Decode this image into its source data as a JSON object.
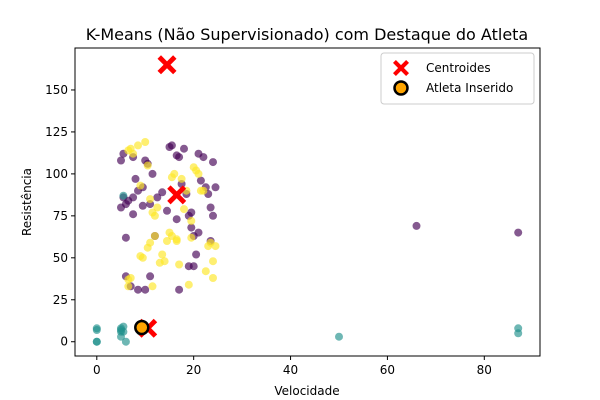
{
  "chart_data": {
    "type": "scatter",
    "title": "K-Means (Não Supervisionado) com Destaque do Atleta",
    "xlabel": "Velocidade",
    "ylabel": "Resistência",
    "xlim": [
      -4.5,
      91.5
    ],
    "ylim": [
      -8.5,
      175
    ],
    "xticks": [
      0,
      20,
      40,
      60,
      80
    ],
    "yticks": [
      0,
      25,
      50,
      75,
      100,
      125,
      150
    ],
    "grid": false,
    "legend_position": "top-right",
    "colors": {
      "cluster_0": "#440154",
      "cluster_1": "#21918c",
      "cluster_2": "#fde725",
      "centroid": "#ff0000",
      "athlete_fill": "#ffa500",
      "athlete_edge": "#000000"
    },
    "series": [
      {
        "cluster": 0,
        "points": [
          [
            5.0,
            108
          ],
          [
            5.5,
            112
          ],
          [
            7.5,
            110
          ],
          [
            8.0,
            97
          ],
          [
            8.5,
            90
          ],
          [
            9.5,
            92
          ],
          [
            10.0,
            108
          ],
          [
            10.5,
            106
          ],
          [
            11.5,
            100
          ],
          [
            12.5,
            86
          ],
          [
            13.5,
            89
          ],
          [
            15.0,
            116
          ],
          [
            15.5,
            117
          ],
          [
            16.5,
            111
          ],
          [
            17.0,
            110
          ],
          [
            17.5,
            94
          ],
          [
            18.0,
            115
          ],
          [
            18.5,
            88
          ],
          [
            19.0,
            75
          ],
          [
            19.5,
            68
          ],
          [
            20.0,
            63
          ],
          [
            21.0,
            112
          ],
          [
            21.5,
            96
          ],
          [
            22.0,
            110
          ],
          [
            22.5,
            92
          ],
          [
            23.0,
            88
          ],
          [
            23.5,
            80
          ],
          [
            24.0,
            75
          ],
          [
            24.0,
            107
          ],
          [
            24.5,
            92
          ],
          [
            6.0,
            82
          ],
          [
            6.5,
            84
          ],
          [
            6.0,
            62
          ],
          [
            7.5,
            76
          ],
          [
            9.5,
            81
          ],
          [
            11.0,
            82
          ],
          [
            12.0,
            63
          ],
          [
            14.5,
            78
          ],
          [
            16.5,
            73
          ],
          [
            19.5,
            77
          ],
          [
            21.0,
            65
          ],
          [
            23.5,
            60
          ],
          [
            5.0,
            80
          ],
          [
            6.0,
            39
          ],
          [
            7.0,
            33
          ],
          [
            8.5,
            31
          ],
          [
            10.0,
            31
          ],
          [
            11.0,
            39
          ],
          [
            17.0,
            31
          ],
          [
            19.0,
            45
          ],
          [
            20.0,
            45
          ],
          [
            20.5,
            52
          ],
          [
            5.5,
            86
          ],
          [
            7.5,
            86
          ],
          [
            66,
            69
          ],
          [
            87,
            65
          ]
        ]
      },
      {
        "cluster": 1,
        "points": [
          [
            0,
            7
          ],
          [
            0,
            8
          ],
          [
            0,
            0
          ],
          [
            0,
            0
          ],
          [
            5,
            3
          ],
          [
            5,
            6
          ],
          [
            5,
            7
          ],
          [
            5,
            8
          ],
          [
            5.5,
            6
          ],
          [
            5.5,
            9
          ],
          [
            6,
            0
          ],
          [
            9,
            6
          ],
          [
            5.5,
            87
          ],
          [
            50,
            3
          ],
          [
            87,
            5
          ],
          [
            87,
            8
          ]
        ]
      },
      {
        "cluster": 2,
        "points": [
          [
            6.5,
            114
          ],
          [
            7.0,
            115
          ],
          [
            7.5,
            112
          ],
          [
            8.5,
            117
          ],
          [
            9.0,
            93
          ],
          [
            10.0,
            119
          ],
          [
            10.5,
            105
          ],
          [
            11.0,
            85
          ],
          [
            11.5,
            77
          ],
          [
            12.0,
            63
          ],
          [
            12.5,
            80
          ],
          [
            13.0,
            47
          ],
          [
            13.5,
            52
          ],
          [
            14.0,
            48
          ],
          [
            14.5,
            60
          ],
          [
            15.0,
            65
          ],
          [
            15.5,
            98
          ],
          [
            16.0,
            100
          ],
          [
            16.5,
            61
          ],
          [
            17.0,
            46
          ],
          [
            17.5,
            97
          ],
          [
            18.0,
            79
          ],
          [
            18.5,
            90
          ],
          [
            19.0,
            34
          ],
          [
            19.5,
            72
          ],
          [
            20.0,
            104
          ],
          [
            20.5,
            102
          ],
          [
            21.0,
            100
          ],
          [
            21.5,
            90
          ],
          [
            22.0,
            90
          ],
          [
            22.5,
            42
          ],
          [
            23.0,
            57
          ],
          [
            23.5,
            59
          ],
          [
            24.0,
            38
          ],
          [
            24.0,
            48
          ],
          [
            24.5,
            57
          ],
          [
            10.5,
            56
          ],
          [
            11.0,
            59
          ],
          [
            11.5,
            33
          ],
          [
            9.0,
            51
          ],
          [
            9.5,
            50
          ],
          [
            6.5,
            37
          ],
          [
            7.0,
            38
          ],
          [
            6.5,
            33
          ],
          [
            12.0,
            75
          ],
          [
            15.5,
            63
          ],
          [
            16.5,
            60
          ],
          [
            19.5,
            62
          ]
        ]
      }
    ],
    "centroids": [
      [
        14.5,
        165
      ],
      [
        16.5,
        87.5
      ],
      [
        10.5,
        8
      ]
    ],
    "athlete": [
      9.3,
      8.5
    ],
    "legend": [
      {
        "label": "Centroides",
        "marker": "x"
      },
      {
        "label": "Atleta Inserido",
        "marker": "o"
      }
    ]
  }
}
